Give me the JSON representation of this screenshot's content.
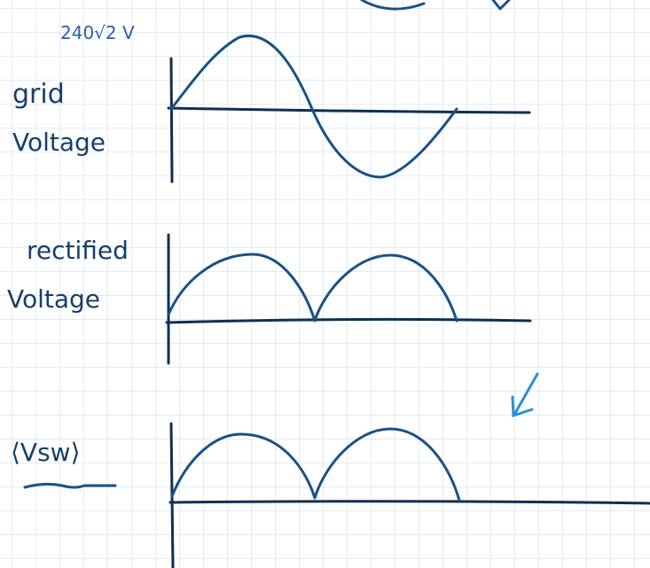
{
  "amplitude_note": "240√2 V",
  "plots": [
    {
      "label_lines": [
        "grid",
        "Voltage"
      ]
    },
    {
      "label_lines": [
        "rectified",
        "Voltage"
      ]
    },
    {
      "label_lines": [
        "⟨Vsw⟩"
      ]
    }
  ]
}
